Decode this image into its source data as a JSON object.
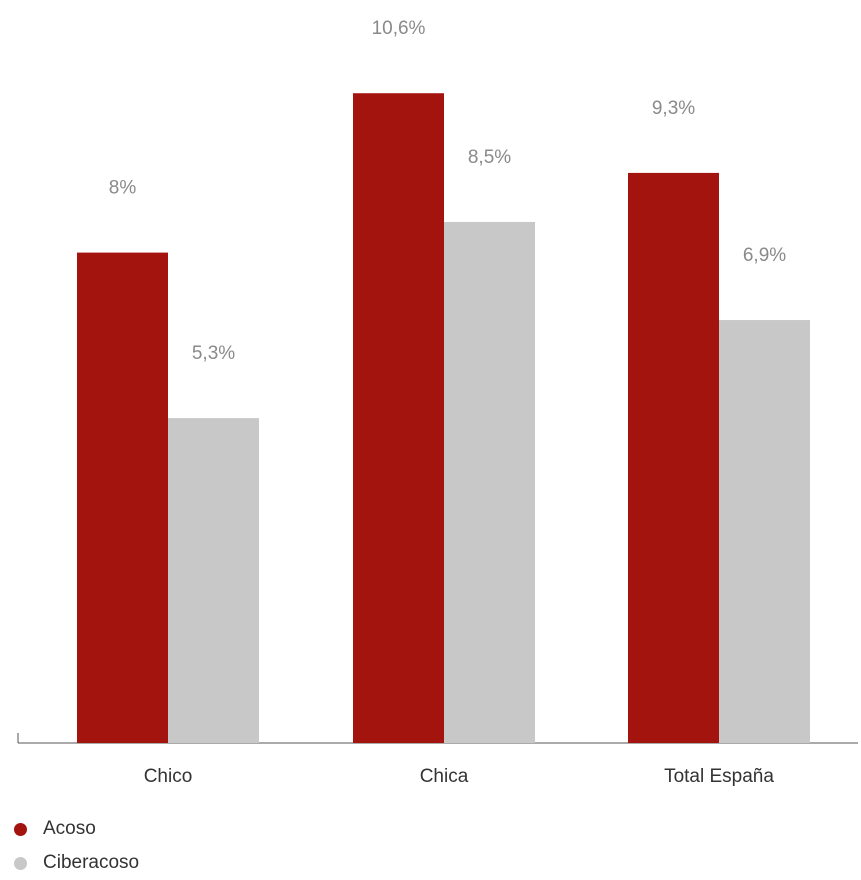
{
  "chart_data": {
    "type": "bar",
    "categories": [
      "Chico",
      "Chica",
      "Total España"
    ],
    "series": [
      {
        "name": "Acoso",
        "values": [
          8,
          10.6,
          9.3
        ],
        "labels": [
          "8%",
          "10,6%",
          "9,3%"
        ],
        "color": "#a3140f"
      },
      {
        "name": "Ciberacoso",
        "values": [
          5.3,
          8.5,
          6.9
        ],
        "labels": [
          "5,3%",
          "8,5%",
          "6,9%"
        ],
        "color": "#c8c8c8"
      }
    ],
    "title": "",
    "xlabel": "",
    "ylabel": "",
    "ylim": [
      0,
      12
    ],
    "grid": false,
    "legend_position": "bottom-left"
  }
}
